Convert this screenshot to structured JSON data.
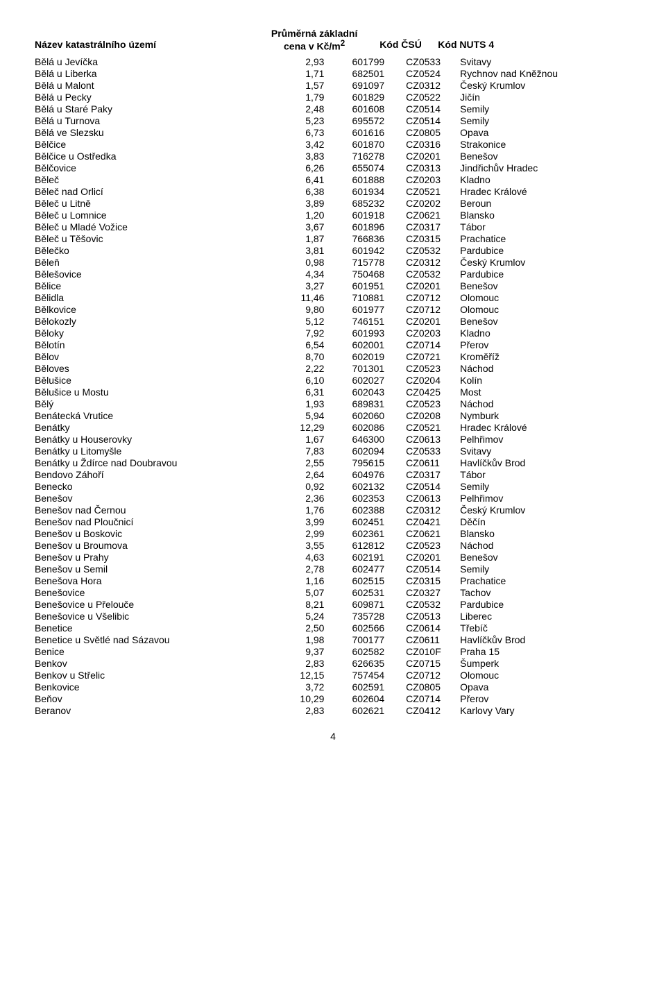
{
  "header": {
    "col1": "Název katastrálního území",
    "col2_line1": "Průměrná základní",
    "col2_line2": "cena v Kč/m",
    "col2_sup": "2",
    "col3": "Kód ČSÚ",
    "col4": "Kód NUTS 4"
  },
  "rows": [
    {
      "name": "Bělá u Jevíčka",
      "price": "2,93",
      "code": "601799",
      "nuts": "CZ0533",
      "region": "Svitavy"
    },
    {
      "name": "Bělá u Liberka",
      "price": "1,71",
      "code": "682501",
      "nuts": "CZ0524",
      "region": "Rychnov nad Kněžnou"
    },
    {
      "name": "Bělá u Malont",
      "price": "1,57",
      "code": "691097",
      "nuts": "CZ0312",
      "region": "Český Krumlov"
    },
    {
      "name": "Bělá u Pecky",
      "price": "1,79",
      "code": "601829",
      "nuts": "CZ0522",
      "region": "Jičín"
    },
    {
      "name": "Bělá u Staré Paky",
      "price": "2,48",
      "code": "601608",
      "nuts": "CZ0514",
      "region": "Semily"
    },
    {
      "name": "Bělá u Turnova",
      "price": "5,23",
      "code": "695572",
      "nuts": "CZ0514",
      "region": "Semily"
    },
    {
      "name": "Bělá ve Slezsku",
      "price": "6,73",
      "code": "601616",
      "nuts": "CZ0805",
      "region": "Opava"
    },
    {
      "name": "Bělčice",
      "price": "3,42",
      "code": "601870",
      "nuts": "CZ0316",
      "region": "Strakonice"
    },
    {
      "name": "Bělčice u Ostředka",
      "price": "3,83",
      "code": "716278",
      "nuts": "CZ0201",
      "region": "Benešov"
    },
    {
      "name": "Bělčovice",
      "price": "6,26",
      "code": "655074",
      "nuts": "CZ0313",
      "region": "Jindřichův Hradec"
    },
    {
      "name": "Běleč",
      "price": "6,41",
      "code": "601888",
      "nuts": "CZ0203",
      "region": "Kladno"
    },
    {
      "name": "Běleč nad Orlicí",
      "price": "6,38",
      "code": "601934",
      "nuts": "CZ0521",
      "region": "Hradec Králové"
    },
    {
      "name": "Běleč u Litně",
      "price": "3,89",
      "code": "685232",
      "nuts": "CZ0202",
      "region": "Beroun"
    },
    {
      "name": "Běleč u Lomnice",
      "price": "1,20",
      "code": "601918",
      "nuts": "CZ0621",
      "region": "Blansko"
    },
    {
      "name": "Běleč u Mladé Vožice",
      "price": "3,67",
      "code": "601896",
      "nuts": "CZ0317",
      "region": "Tábor"
    },
    {
      "name": "Běleč u Těšovic",
      "price": "1,87",
      "code": "766836",
      "nuts": "CZ0315",
      "region": "Prachatice"
    },
    {
      "name": "Bělečko",
      "price": "3,81",
      "code": "601942",
      "nuts": "CZ0532",
      "region": "Pardubice"
    },
    {
      "name": "Běleň",
      "price": "0,98",
      "code": "715778",
      "nuts": "CZ0312",
      "region": "Český Krumlov"
    },
    {
      "name": "Bělešovice",
      "price": "4,34",
      "code": "750468",
      "nuts": "CZ0532",
      "region": "Pardubice"
    },
    {
      "name": "Bělice",
      "price": "3,27",
      "code": "601951",
      "nuts": "CZ0201",
      "region": "Benešov"
    },
    {
      "name": "Bělidla",
      "price": "11,46",
      "code": "710881",
      "nuts": "CZ0712",
      "region": "Olomouc"
    },
    {
      "name": "Bělkovice",
      "price": "9,80",
      "code": "601977",
      "nuts": "CZ0712",
      "region": "Olomouc"
    },
    {
      "name": "Bělokozly",
      "price": "5,12",
      "code": "746151",
      "nuts": "CZ0201",
      "region": "Benešov"
    },
    {
      "name": "Běloky",
      "price": "7,92",
      "code": "601993",
      "nuts": "CZ0203",
      "region": "Kladno"
    },
    {
      "name": "Bělotín",
      "price": "6,54",
      "code": "602001",
      "nuts": "CZ0714",
      "region": "Přerov"
    },
    {
      "name": "Bělov",
      "price": "8,70",
      "code": "602019",
      "nuts": "CZ0721",
      "region": "Kroměříž"
    },
    {
      "name": "Běloves",
      "price": "2,22",
      "code": "701301",
      "nuts": "CZ0523",
      "region": "Náchod"
    },
    {
      "name": "Bělušice",
      "price": "6,10",
      "code": "602027",
      "nuts": "CZ0204",
      "region": "Kolín"
    },
    {
      "name": "Bělušice u Mostu",
      "price": "6,31",
      "code": "602043",
      "nuts": "CZ0425",
      "region": "Most"
    },
    {
      "name": "Bělý",
      "price": "1,93",
      "code": "689831",
      "nuts": "CZ0523",
      "region": "Náchod"
    },
    {
      "name": "Benátecká Vrutice",
      "price": "5,94",
      "code": "602060",
      "nuts": "CZ0208",
      "region": "Nymburk"
    },
    {
      "name": "Benátky",
      "price": "12,29",
      "code": "602086",
      "nuts": "CZ0521",
      "region": "Hradec Králové"
    },
    {
      "name": "Benátky u Houserovky",
      "price": "1,67",
      "code": "646300",
      "nuts": "CZ0613",
      "region": "Pelhřimov"
    },
    {
      "name": "Benátky u Litomyšle",
      "price": "7,83",
      "code": "602094",
      "nuts": "CZ0533",
      "region": "Svitavy"
    },
    {
      "name": "Benátky u Ždírce nad Doubravou",
      "price": "2,55",
      "code": "795615",
      "nuts": "CZ0611",
      "region": "Havlíčkův Brod"
    },
    {
      "name": "Bendovo Záhoří",
      "price": "2,64",
      "code": "604976",
      "nuts": "CZ0317",
      "region": "Tábor"
    },
    {
      "name": "Benecko",
      "price": "0,92",
      "code": "602132",
      "nuts": "CZ0514",
      "region": "Semily"
    },
    {
      "name": "Benešov",
      "price": "2,36",
      "code": "602353",
      "nuts": "CZ0613",
      "region": "Pelhřimov"
    },
    {
      "name": "Benešov nad Černou",
      "price": "1,76",
      "code": "602388",
      "nuts": "CZ0312",
      "region": "Český Krumlov"
    },
    {
      "name": "Benešov nad Ploučnicí",
      "price": "3,99",
      "code": "602451",
      "nuts": "CZ0421",
      "region": "Děčín"
    },
    {
      "name": "Benešov u Boskovic",
      "price": "2,99",
      "code": "602361",
      "nuts": "CZ0621",
      "region": "Blansko"
    },
    {
      "name": "Benešov u Broumova",
      "price": "3,55",
      "code": "612812",
      "nuts": "CZ0523",
      "region": "Náchod"
    },
    {
      "name": "Benešov u Prahy",
      "price": "4,63",
      "code": "602191",
      "nuts": "CZ0201",
      "region": "Benešov"
    },
    {
      "name": "Benešov u Semil",
      "price": "2,78",
      "code": "602477",
      "nuts": "CZ0514",
      "region": "Semily"
    },
    {
      "name": "Benešova Hora",
      "price": "1,16",
      "code": "602515",
      "nuts": "CZ0315",
      "region": "Prachatice"
    },
    {
      "name": "Benešovice",
      "price": "5,07",
      "code": "602531",
      "nuts": "CZ0327",
      "region": "Tachov"
    },
    {
      "name": "Benešovice u Přelouče",
      "price": "8,21",
      "code": "609871",
      "nuts": "CZ0532",
      "region": "Pardubice"
    },
    {
      "name": "Benešovice u Všelibic",
      "price": "5,24",
      "code": "735728",
      "nuts": "CZ0513",
      "region": "Liberec"
    },
    {
      "name": "Benetice",
      "price": "2,50",
      "code": "602566",
      "nuts": "CZ0614",
      "region": "Třebíč"
    },
    {
      "name": "Benetice u Světlé nad Sázavou",
      "price": "1,98",
      "code": "700177",
      "nuts": "CZ0611",
      "region": "Havlíčkův Brod"
    },
    {
      "name": "Benice",
      "price": "9,37",
      "code": "602582",
      "nuts": "CZ010F",
      "region": "Praha 15"
    },
    {
      "name": "Benkov",
      "price": "2,83",
      "code": "626635",
      "nuts": "CZ0715",
      "region": "Šumperk"
    },
    {
      "name": "Benkov u Střelic",
      "price": "12,15",
      "code": "757454",
      "nuts": "CZ0712",
      "region": "Olomouc"
    },
    {
      "name": "Benkovice",
      "price": "3,72",
      "code": "602591",
      "nuts": "CZ0805",
      "region": "Opava"
    },
    {
      "name": "Beňov",
      "price": "10,29",
      "code": "602604",
      "nuts": "CZ0714",
      "region": "Přerov"
    },
    {
      "name": "Beranov",
      "price": "2,83",
      "code": "602621",
      "nuts": "CZ0412",
      "region": "Karlovy Vary"
    }
  ],
  "pageNumber": "4"
}
